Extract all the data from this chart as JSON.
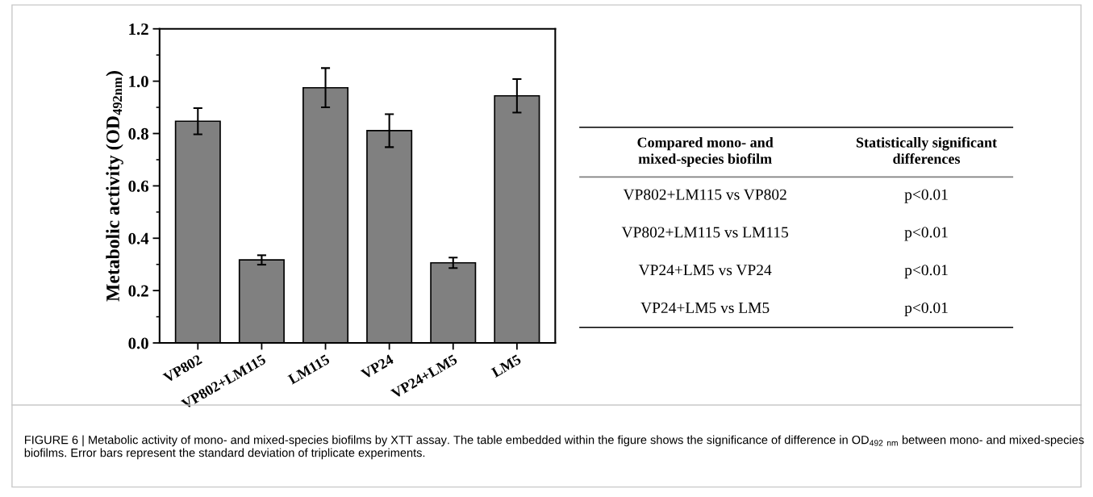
{
  "chart_data": [
    {
      "type": "bar",
      "ylabel": "Metabolic activity (OD$_{492nm}$)",
      "categories": [
        "VP802",
        "VP802+LM115",
        "LM115",
        "VP24",
        "VP24+LM5",
        "LM5"
      ],
      "values": [
        0.847,
        0.317,
        0.975,
        0.811,
        0.306,
        0.944
      ],
      "errors": [
        0.05,
        0.018,
        0.075,
        0.063,
        0.02,
        0.064
      ],
      "color": "#808080",
      "ylim": [
        0,
        1.2
      ],
      "yticks": [
        {
          "value": 0,
          "label": "0.0"
        },
        0.2,
        0.4,
        0.6,
        0.8,
        {
          "value": 1,
          "label": "1.0"
        },
        1.2
      ],
      "grid": false,
      "annotations": [
        "FIGURE 6 | Metabolic activity of mono- and mixed-species biofilms by XTT assay. The table embedded within the figure shows the significance of difference in OD$_{492}$ $_{nm}$ between mono- and mixed-species biofilms. Error bars represent the standard deviation of triplicate experiments."
      ]
    },
    {
      "type": "other",
      "annotations": [
        "Compared mono- and\nmixed-species biofilm",
        "Statistically significant\ndifferences",
        "VP802+LM115 vs VP802",
        "p<0.01",
        "VP802+LM115 vs LM115",
        "p<0.01",
        "VP24+LM5 vs VP24",
        "p<0.01",
        "VP24+LM5 vs LM5",
        "p<0.01"
      ]
    }
  ]
}
